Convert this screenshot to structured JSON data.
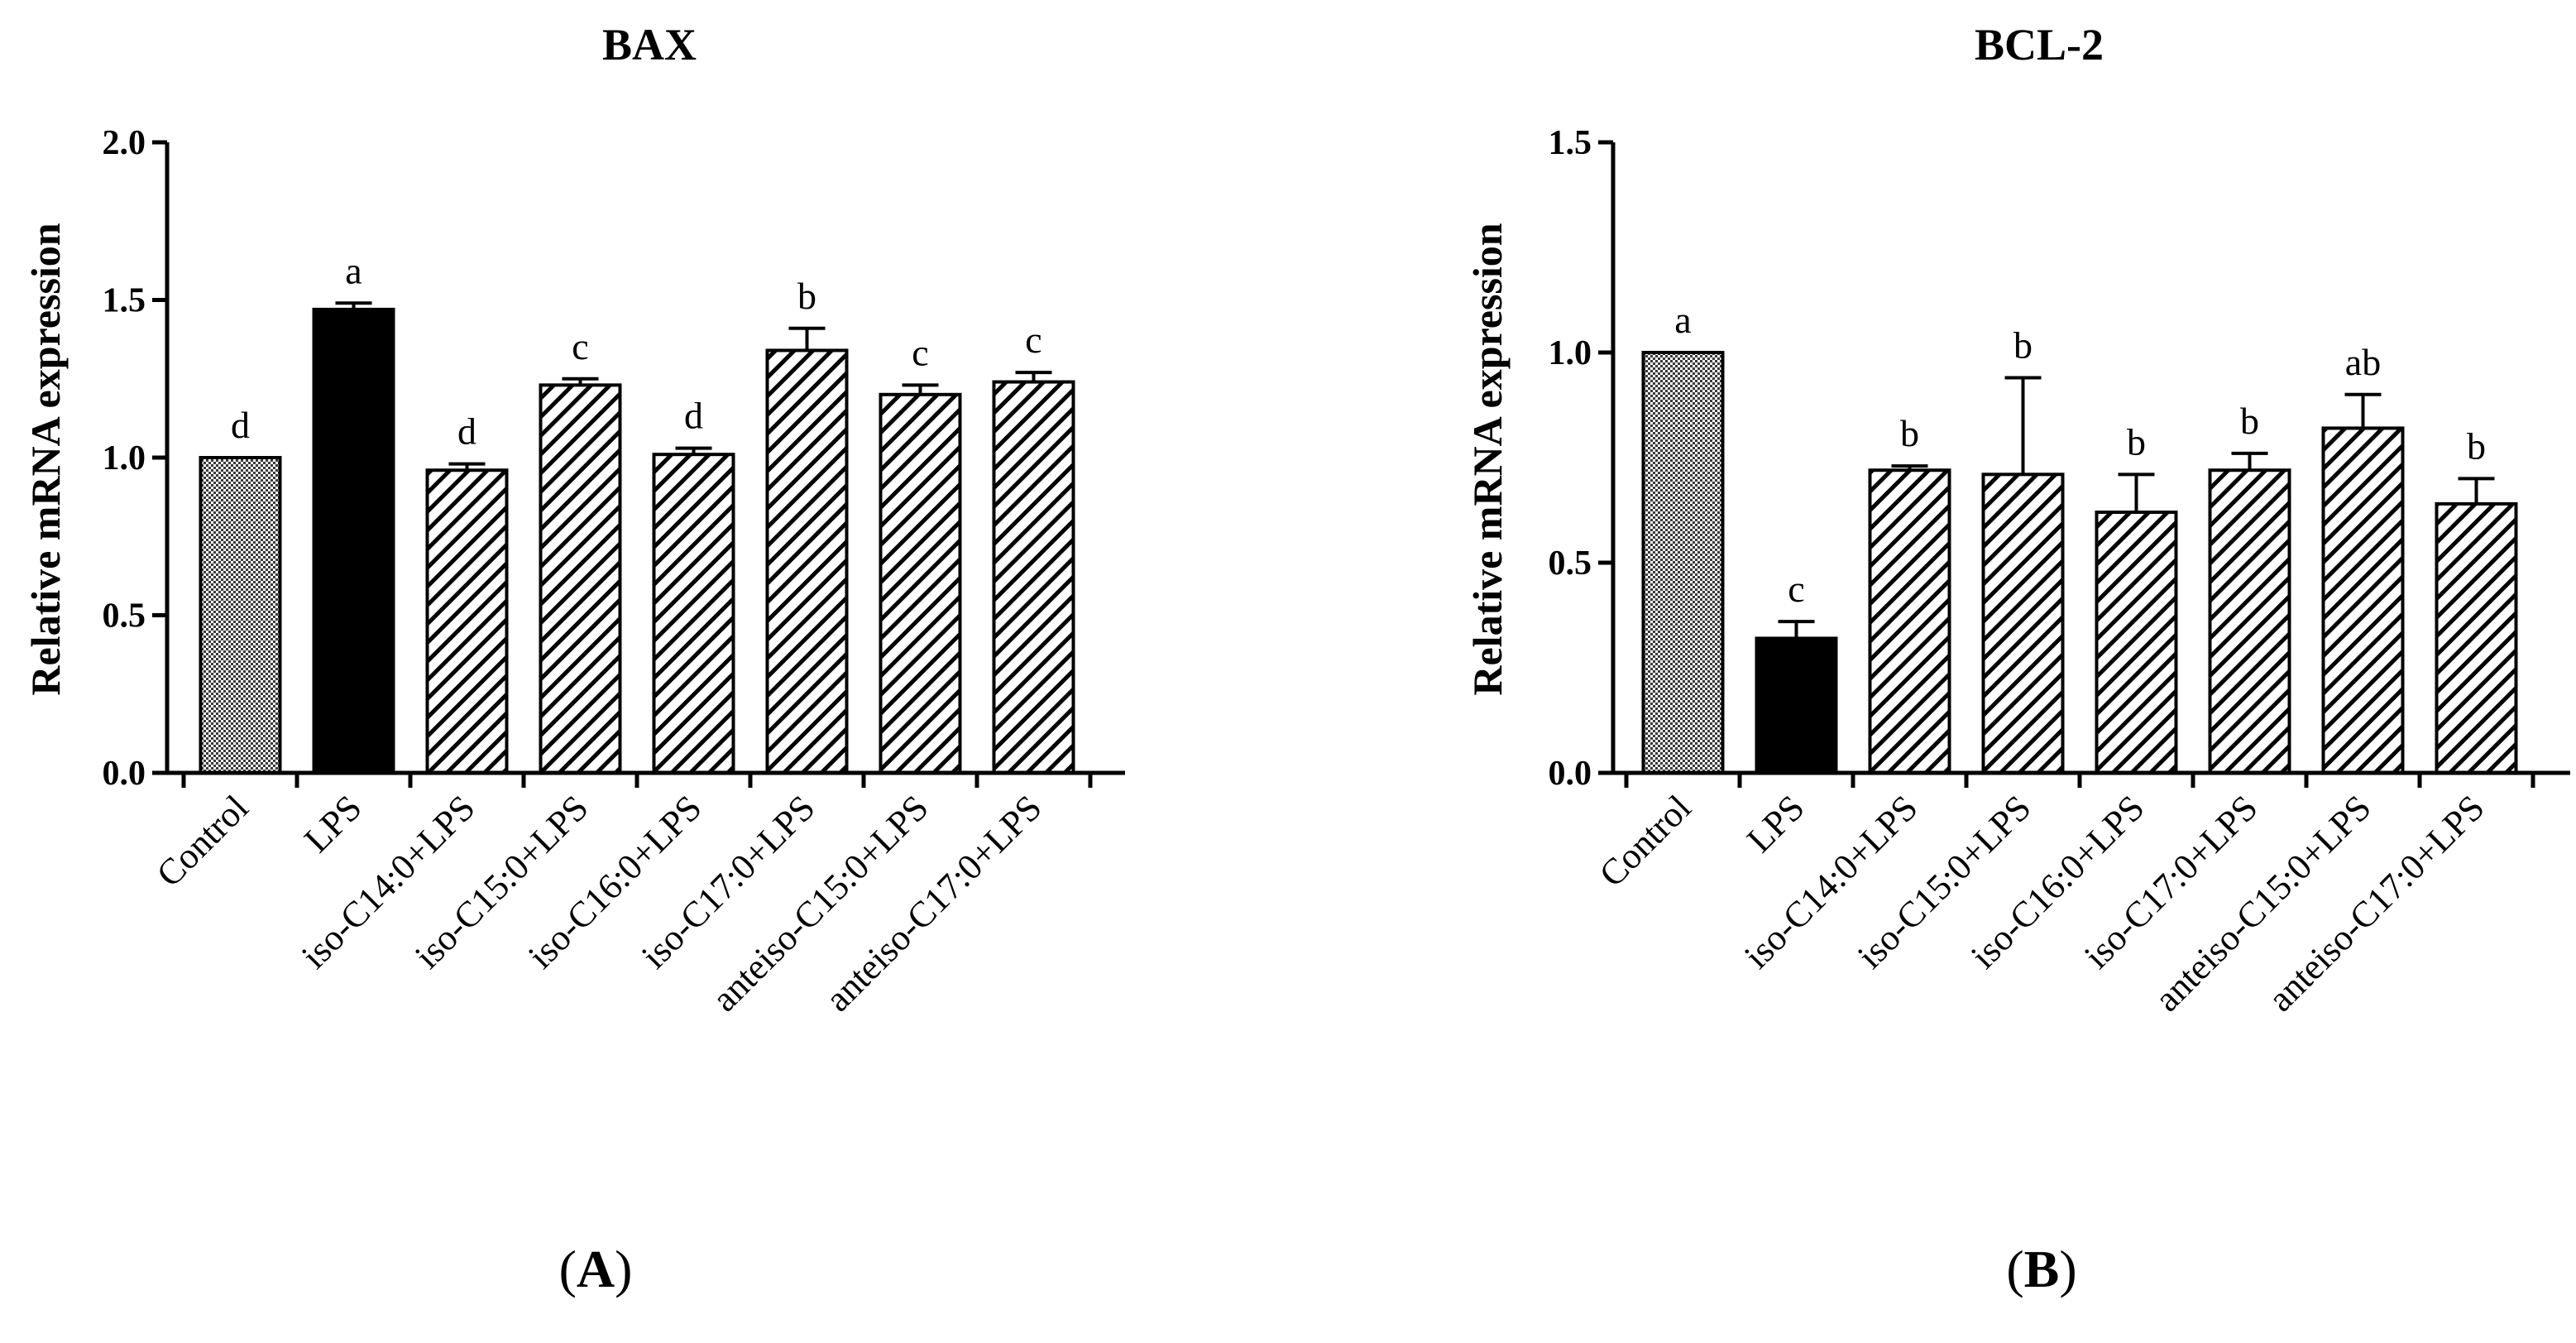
{
  "chart_data": [
    {
      "type": "bar",
      "title": "BAX",
      "panel_letter": "A",
      "ylabel": "Relative mRNA expression",
      "xlabel": "",
      "ylim": [
        0,
        2.0
      ],
      "yticks": [
        0.0,
        0.5,
        1.0,
        1.5,
        2.0
      ],
      "ytick_labels": [
        "0.0",
        "0.5",
        "1.0",
        "1.5",
        "2.0"
      ],
      "categories": [
        "Control",
        "LPS",
        "iso-C14:0+LPS",
        "iso-C15:0+LPS",
        "iso-C16:0+LPS",
        "iso-C17:0+LPS",
        "anteiso-C15:0+LPS",
        "anteiso-C17:0+LPS"
      ],
      "values": [
        1.0,
        1.47,
        0.96,
        1.23,
        1.01,
        1.34,
        1.2,
        1.24
      ],
      "errors": [
        0.0,
        0.02,
        0.02,
        0.02,
        0.02,
        0.07,
        0.03,
        0.03
      ],
      "significance": [
        "d",
        "a",
        "d",
        "c",
        "d",
        "b",
        "c",
        "c"
      ],
      "fills": [
        "checker",
        "solid",
        "hatch",
        "hatch",
        "hatch",
        "hatch",
        "hatch",
        "hatch"
      ],
      "grid": false,
      "legend": "none"
    },
    {
      "type": "bar",
      "title": "BCL-2",
      "panel_letter": "B",
      "ylabel": "Relative mRNA expression",
      "xlabel": "",
      "ylim": [
        0,
        1.5
      ],
      "yticks": [
        0.0,
        0.5,
        1.0,
        1.5
      ],
      "ytick_labels": [
        "0.0",
        "0.5",
        "1.0",
        "1.5"
      ],
      "categories": [
        "Control",
        "LPS",
        "iso-C14:0+LPS",
        "iso-C15:0+LPS",
        "iso-C16:0+LPS",
        "iso-C17:0+LPS",
        "anteiso-C15:0+LPS",
        "anteiso-C17:0+LPS"
      ],
      "values": [
        1.0,
        0.32,
        0.72,
        0.71,
        0.62,
        0.72,
        0.82,
        0.64
      ],
      "errors": [
        0.0,
        0.04,
        0.01,
        0.23,
        0.09,
        0.04,
        0.08,
        0.06
      ],
      "significance": [
        "a",
        "c",
        "b",
        "b",
        "b",
        "b",
        "ab",
        "b"
      ],
      "fills": [
        "checker",
        "solid",
        "hatch",
        "hatch",
        "hatch",
        "hatch",
        "hatch",
        "hatch"
      ],
      "grid": false,
      "legend": "none"
    }
  ]
}
